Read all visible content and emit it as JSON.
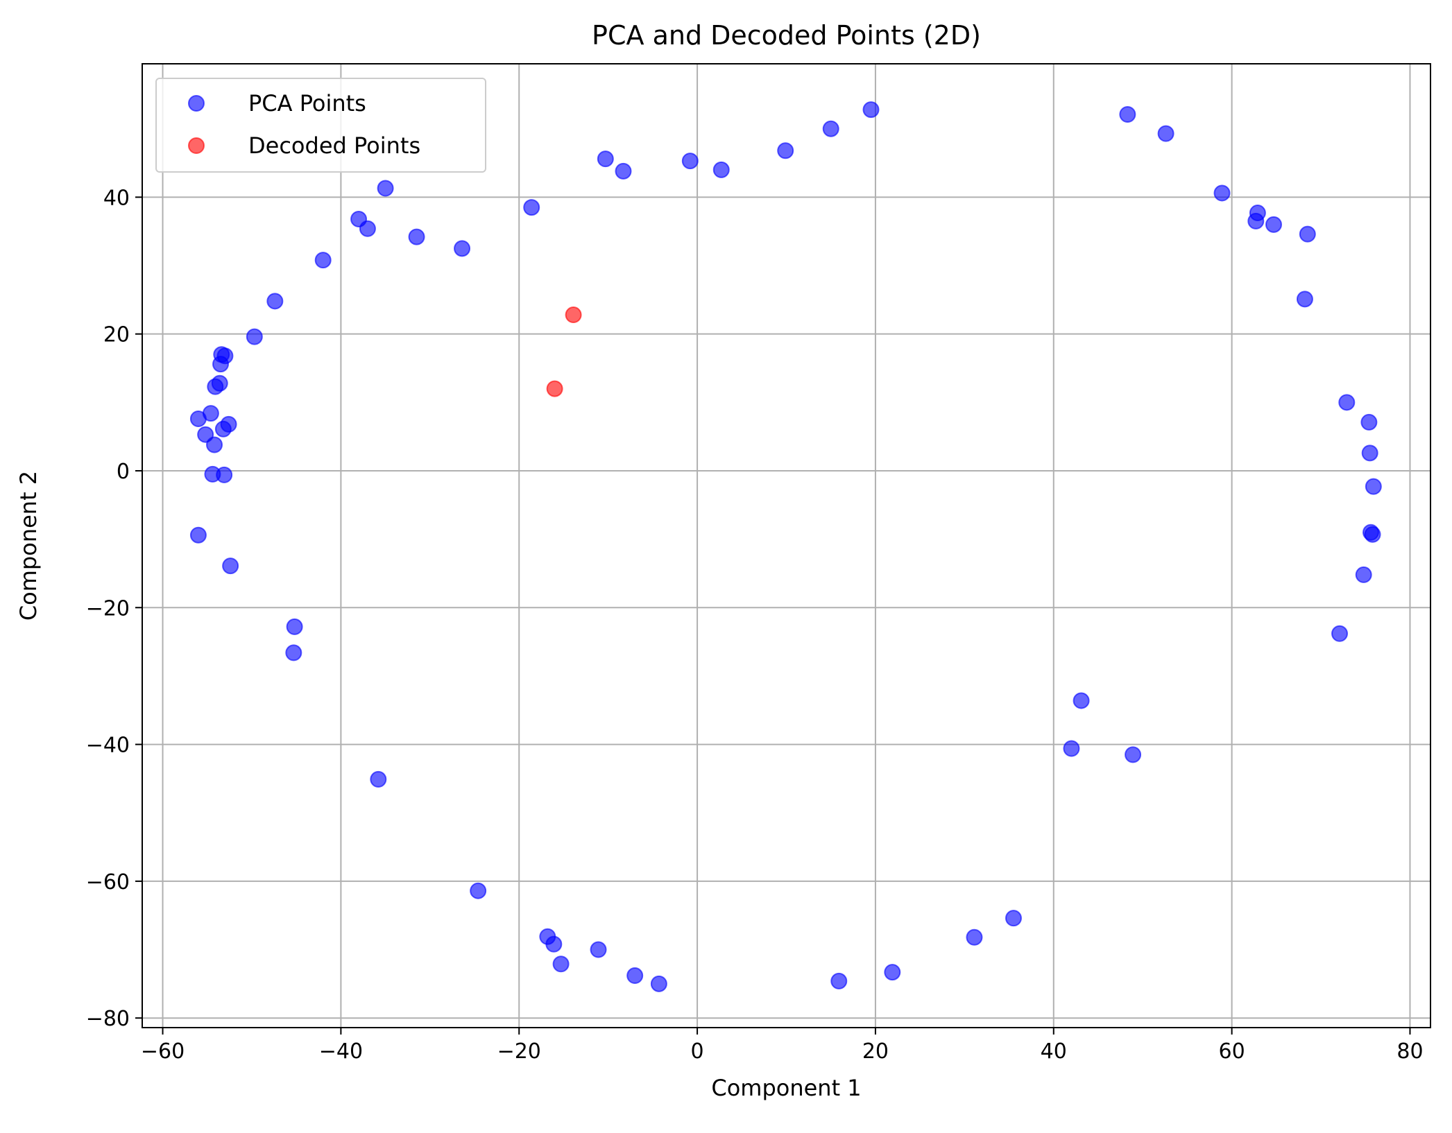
{
  "chart_data": {
    "type": "scatter",
    "title": "PCA and Decoded Points (2D)",
    "xlabel": "Component 1",
    "ylabel": "Component 2",
    "xlim": [
      -62.3,
      82.3
    ],
    "ylim": [
      -81.4,
      59.5
    ],
    "xticks": [
      -60,
      -40,
      -20,
      0,
      20,
      40,
      60,
      80
    ],
    "yticks": [
      -80,
      -60,
      -40,
      -20,
      0,
      20,
      40
    ],
    "xtick_labels": [
      "−60",
      "−40",
      "−20",
      "0",
      "20",
      "40",
      "60",
      "80"
    ],
    "ytick_labels": [
      "−80",
      "−60",
      "−40",
      "−20",
      "0",
      "20",
      "40"
    ],
    "grid": true,
    "legend_position": "top-left",
    "series": [
      {
        "name": "PCA Points",
        "color": "#0000ff",
        "points": [
          [
            19.5,
            52.8
          ],
          [
            15.0,
            50.0
          ],
          [
            9.9,
            46.8
          ],
          [
            2.7,
            44.0
          ],
          [
            -0.8,
            45.3
          ],
          [
            -8.3,
            43.8
          ],
          [
            -10.3,
            45.6
          ],
          [
            -18.6,
            38.5
          ],
          [
            -26.4,
            32.5
          ],
          [
            -31.5,
            34.2
          ],
          [
            -35.0,
            41.3
          ],
          [
            -37.0,
            35.4
          ],
          [
            -38.0,
            36.8
          ],
          [
            -42.0,
            30.8
          ],
          [
            -47.4,
            24.8
          ],
          [
            -49.7,
            19.6
          ],
          [
            -53.4,
            17.0
          ],
          [
            -53.0,
            16.8
          ],
          [
            -53.5,
            15.6
          ],
          [
            -53.6,
            12.8
          ],
          [
            -54.1,
            12.3
          ],
          [
            -54.6,
            8.4
          ],
          [
            -56.0,
            7.6
          ],
          [
            -52.6,
            6.8
          ],
          [
            -53.2,
            6.1
          ],
          [
            -55.2,
            5.3
          ],
          [
            -54.2,
            3.8
          ],
          [
            -54.4,
            -0.5
          ],
          [
            -53.1,
            -0.6
          ],
          [
            -56.0,
            -9.4
          ],
          [
            -52.4,
            -13.9
          ],
          [
            -45.2,
            -22.8
          ],
          [
            -45.3,
            -26.6
          ],
          [
            -35.8,
            -45.1
          ],
          [
            -24.6,
            -61.4
          ],
          [
            -16.8,
            -68.1
          ],
          [
            -16.1,
            -69.2
          ],
          [
            -15.3,
            -72.1
          ],
          [
            -11.1,
            -70.0
          ],
          [
            -7.0,
            -73.8
          ],
          [
            -4.3,
            -75.0
          ],
          [
            15.9,
            -74.6
          ],
          [
            21.9,
            -73.3
          ],
          [
            31.1,
            -68.2
          ],
          [
            35.5,
            -65.4
          ],
          [
            42.0,
            -40.6
          ],
          [
            43.1,
            -33.6
          ],
          [
            48.9,
            -41.5
          ],
          [
            48.3,
            52.1
          ],
          [
            52.6,
            49.3
          ],
          [
            58.9,
            40.6
          ],
          [
            62.7,
            36.5
          ],
          [
            62.9,
            37.7
          ],
          [
            64.7,
            36.0
          ],
          [
            68.5,
            34.6
          ],
          [
            68.2,
            25.1
          ],
          [
            72.9,
            10.0
          ],
          [
            75.4,
            7.1
          ],
          [
            75.5,
            2.6
          ],
          [
            75.9,
            -2.3
          ],
          [
            75.6,
            -9.0
          ],
          [
            75.8,
            -9.3
          ],
          [
            74.8,
            -15.2
          ],
          [
            72.1,
            -23.8
          ]
        ]
      },
      {
        "name": "Decoded Points",
        "color": "#ff0000",
        "points": [
          [
            -13.9,
            22.8
          ],
          [
            -16.0,
            12.0
          ]
        ]
      }
    ]
  }
}
